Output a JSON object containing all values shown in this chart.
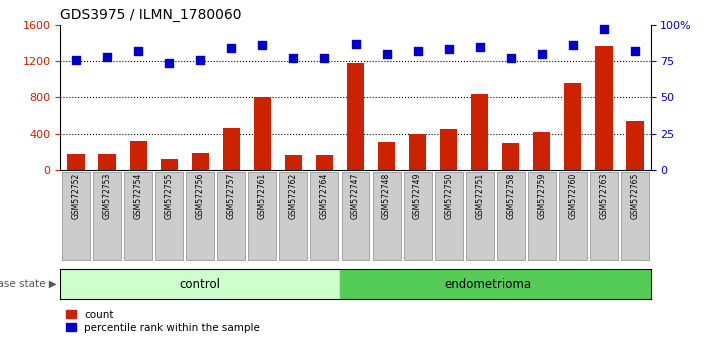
{
  "title": "GDS3975 / ILMN_1780060",
  "samples": [
    "GSM572752",
    "GSM572753",
    "GSM572754",
    "GSM572755",
    "GSM572756",
    "GSM572757",
    "GSM572761",
    "GSM572762",
    "GSM572764",
    "GSM572747",
    "GSM572748",
    "GSM572749",
    "GSM572750",
    "GSM572751",
    "GSM572758",
    "GSM572759",
    "GSM572760",
    "GSM572763",
    "GSM572765"
  ],
  "counts": [
    170,
    170,
    320,
    120,
    185,
    460,
    800,
    165,
    165,
    1175,
    310,
    400,
    450,
    840,
    295,
    420,
    960,
    1370,
    540
  ],
  "percentiles": [
    76,
    78,
    82,
    74,
    76,
    84,
    86,
    77,
    77,
    87,
    80,
    82,
    83,
    85,
    77,
    80,
    86,
    97,
    82
  ],
  "n_control": 9,
  "control_color": "#ccffcc",
  "endometrioma_color": "#55cc55",
  "bar_color": "#cc2200",
  "dot_color": "#0000cc",
  "left_ylim": [
    0,
    1600
  ],
  "right_ylim": [
    0,
    100
  ],
  "left_yticks": [
    0,
    400,
    800,
    1200,
    1600
  ],
  "right_yticks": [
    0,
    25,
    50,
    75,
    100
  ],
  "right_yticklabels": [
    "0",
    "25",
    "50",
    "75",
    "100%"
  ],
  "grid_values": [
    400,
    800,
    1200
  ],
  "tick_bg_color": "#cccccc"
}
